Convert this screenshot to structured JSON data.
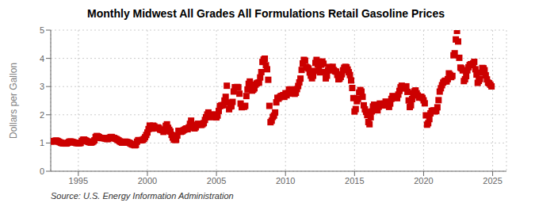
{
  "chart_data": {
    "type": "scatter",
    "title": "Monthly Midwest All Grades All Formulations Retail Gasoline Prices",
    "y_label": "Dollars per Gallon",
    "annotations": [
      "Source: U.S. Energy Information Administration"
    ],
    "color": "#cc0000",
    "marker": "square",
    "grid": true,
    "xlim": [
      1993.0,
      2026.0
    ],
    "xticks": [
      1995,
      2000,
      2005,
      2010,
      2015,
      2020,
      2025
    ],
    "ylim": [
      0,
      5
    ],
    "yticks": [
      0,
      1,
      2,
      3,
      4,
      5
    ],
    "x": [
      1993.0,
      1993.083,
      1993.167,
      1993.25,
      1993.333,
      1993.417,
      1993.5,
      1993.583,
      1993.667,
      1993.75,
      1993.833,
      1993.917,
      1994.0,
      1994.083,
      1994.167,
      1994.25,
      1994.333,
      1994.417,
      1994.5,
      1994.583,
      1994.667,
      1994.75,
      1994.833,
      1994.917,
      1995.0,
      1995.083,
      1995.167,
      1995.25,
      1995.333,
      1995.417,
      1995.5,
      1995.583,
      1995.667,
      1995.75,
      1995.833,
      1995.917,
      1996.0,
      1996.083,
      1996.167,
      1996.25,
      1996.333,
      1996.417,
      1996.5,
      1996.583,
      1996.667,
      1996.75,
      1996.833,
      1996.917,
      1997.0,
      1997.083,
      1997.167,
      1997.25,
      1997.333,
      1997.417,
      1997.5,
      1997.583,
      1997.667,
      1997.75,
      1997.833,
      1997.917,
      1998.0,
      1998.083,
      1998.167,
      1998.25,
      1998.333,
      1998.417,
      1998.5,
      1998.583,
      1998.667,
      1998.75,
      1998.833,
      1998.917,
      1999.0,
      1999.083,
      1999.167,
      1999.25,
      1999.333,
      1999.417,
      1999.5,
      1999.583,
      1999.667,
      1999.75,
      1999.833,
      1999.917,
      2000.0,
      2000.083,
      2000.167,
      2000.25,
      2000.333,
      2000.417,
      2000.5,
      2000.583,
      2000.667,
      2000.75,
      2000.833,
      2000.917,
      2001.0,
      2001.083,
      2001.167,
      2001.25,
      2001.333,
      2001.417,
      2001.5,
      2001.583,
      2001.667,
      2001.75,
      2001.833,
      2001.917,
      2002.0,
      2002.083,
      2002.167,
      2002.25,
      2002.333,
      2002.417,
      2002.5,
      2002.583,
      2002.667,
      2002.75,
      2002.833,
      2002.917,
      2003.0,
      2003.083,
      2003.167,
      2003.25,
      2003.333,
      2003.417,
      2003.5,
      2003.583,
      2003.667,
      2003.75,
      2003.833,
      2003.917,
      2004.0,
      2004.083,
      2004.167,
      2004.25,
      2004.333,
      2004.417,
      2004.5,
      2004.583,
      2004.667,
      2004.75,
      2004.833,
      2004.917,
      2005.0,
      2005.083,
      2005.167,
      2005.25,
      2005.333,
      2005.417,
      2005.5,
      2005.583,
      2005.667,
      2005.75,
      2005.833,
      2005.917,
      2006.0,
      2006.083,
      2006.167,
      2006.25,
      2006.333,
      2006.417,
      2006.5,
      2006.583,
      2006.667,
      2006.75,
      2006.833,
      2006.917,
      2007.0,
      2007.083,
      2007.167,
      2007.25,
      2007.333,
      2007.417,
      2007.5,
      2007.583,
      2007.667,
      2007.75,
      2007.833,
      2007.917,
      2008.0,
      2008.083,
      2008.167,
      2008.25,
      2008.333,
      2008.417,
      2008.5,
      2008.583,
      2008.667,
      2008.75,
      2008.833,
      2008.917,
      2009.0,
      2009.083,
      2009.167,
      2009.25,
      2009.333,
      2009.417,
      2009.5,
      2009.583,
      2009.667,
      2009.75,
      2009.833,
      2009.917,
      2010.0,
      2010.083,
      2010.167,
      2010.25,
      2010.333,
      2010.417,
      2010.5,
      2010.583,
      2010.667,
      2010.75,
      2010.833,
      2010.917,
      2011.0,
      2011.083,
      2011.167,
      2011.25,
      2011.333,
      2011.417,
      2011.5,
      2011.583,
      2011.667,
      2011.75,
      2011.833,
      2011.917,
      2012.0,
      2012.083,
      2012.167,
      2012.25,
      2012.333,
      2012.417,
      2012.5,
      2012.583,
      2012.667,
      2012.75,
      2012.833,
      2012.917,
      2013.0,
      2013.083,
      2013.167,
      2013.25,
      2013.333,
      2013.417,
      2013.5,
      2013.583,
      2013.667,
      2013.75,
      2013.833,
      2013.917,
      2014.0,
      2014.083,
      2014.167,
      2014.25,
      2014.333,
      2014.417,
      2014.5,
      2014.583,
      2014.667,
      2014.75,
      2014.833,
      2014.917,
      2015.0,
      2015.083,
      2015.167,
      2015.25,
      2015.333,
      2015.417,
      2015.5,
      2015.583,
      2015.667,
      2015.75,
      2015.833,
      2015.917,
      2016.0,
      2016.083,
      2016.167,
      2016.25,
      2016.333,
      2016.417,
      2016.5,
      2016.583,
      2016.667,
      2016.75,
      2016.833,
      2016.917,
      2017.0,
      2017.083,
      2017.167,
      2017.25,
      2017.333,
      2017.417,
      2017.5,
      2017.583,
      2017.667,
      2017.75,
      2017.833,
      2017.917,
      2018.0,
      2018.083,
      2018.167,
      2018.25,
      2018.333,
      2018.417,
      2018.5,
      2018.583,
      2018.667,
      2018.75,
      2018.833,
      2018.917,
      2019.0,
      2019.083,
      2019.167,
      2019.25,
      2019.333,
      2019.417,
      2019.5,
      2019.583,
      2019.667,
      2019.75,
      2019.833,
      2019.917,
      2020.0,
      2020.083,
      2020.167,
      2020.25,
      2020.333,
      2020.417,
      2020.5,
      2020.583,
      2020.667,
      2020.75,
      2020.833,
      2020.917,
      2021.0,
      2021.083,
      2021.167,
      2021.25,
      2021.333,
      2021.417,
      2021.5,
      2021.583,
      2021.667,
      2021.75,
      2021.833,
      2021.917,
      2022.0,
      2022.083,
      2022.167,
      2022.25,
      2022.333,
      2022.417,
      2022.5,
      2022.583,
      2022.667,
      2022.75,
      2022.833,
      2022.917,
      2023.0,
      2023.083,
      2023.167,
      2023.25,
      2023.333,
      2023.417,
      2023.5,
      2023.583,
      2023.667,
      2023.75,
      2023.833,
      2023.917,
      2024.0,
      2024.083,
      2024.167,
      2024.25,
      2024.333,
      2024.417,
      2024.5,
      2024.583,
      2024.667,
      2024.75,
      2024.833,
      2024.917
    ],
    "values": [
      1.061,
      1.058,
      1.057,
      1.06,
      1.081,
      1.086,
      1.07,
      1.046,
      1.027,
      1.008,
      0.993,
      0.99,
      0.988,
      0.981,
      0.986,
      1.012,
      1.044,
      1.055,
      1.047,
      1.037,
      1.022,
      1.012,
      1.001,
      0.995,
      0.995,
      0.992,
      1.003,
      1.07,
      1.116,
      1.122,
      1.098,
      1.076,
      1.052,
      1.038,
      1.023,
      1.013,
      1.03,
      1.054,
      1.095,
      1.213,
      1.247,
      1.237,
      1.207,
      1.184,
      1.176,
      1.176,
      1.176,
      1.163,
      1.155,
      1.138,
      1.145,
      1.183,
      1.211,
      1.212,
      1.186,
      1.18,
      1.155,
      1.14,
      1.115,
      1.091,
      1.057,
      1.034,
      1.015,
      1.011,
      1.041,
      1.048,
      1.038,
      1.026,
      1.011,
      0.99,
      0.963,
      0.946,
      0.936,
      0.919,
      0.931,
      1.046,
      1.101,
      1.098,
      1.094,
      1.1,
      1.109,
      1.147,
      1.204,
      1.284,
      1.372,
      1.494,
      1.617,
      1.523,
      1.511,
      1.616,
      1.59,
      1.524,
      1.529,
      1.554,
      1.535,
      1.476,
      1.47,
      1.453,
      1.394,
      1.43,
      1.608,
      1.662,
      1.538,
      1.467,
      1.406,
      1.288,
      1.193,
      1.121,
      1.108,
      1.115,
      1.265,
      1.43,
      1.427,
      1.395,
      1.408,
      1.442,
      1.467,
      1.494,
      1.517,
      1.487,
      1.556,
      1.679,
      1.793,
      1.638,
      1.543,
      1.518,
      1.558,
      1.643,
      1.682,
      1.669,
      1.647,
      1.641,
      1.67,
      1.706,
      1.817,
      1.912,
      2.01,
      2.082,
      1.978,
      1.926,
      1.916,
      2.002,
      2.012,
      1.946,
      1.908,
      1.972,
      2.139,
      2.304,
      2.327,
      2.339,
      2.342,
      2.505,
      2.636,
      3.029,
      2.432,
      2.197,
      2.293,
      2.307,
      2.457,
      2.824,
      2.977,
      2.974,
      2.985,
      2.974,
      2.748,
      2.397,
      2.268,
      2.292,
      2.282,
      2.317,
      2.665,
      2.897,
      3.098,
      3.179,
      3.028,
      2.856,
      2.893,
      2.939,
      3.068,
      3.111,
      3.136,
      3.143,
      3.324,
      3.512,
      3.872,
      3.954,
      3.988,
      3.756,
      3.614,
      3.24,
      2.316,
      1.737,
      1.792,
      1.923,
      1.973,
      2.082,
      2.44,
      2.602,
      2.569,
      2.624,
      2.665,
      2.67,
      2.698,
      2.634,
      2.764,
      2.69,
      2.763,
      2.893,
      2.899,
      2.896,
      2.758,
      2.757,
      2.743,
      2.78,
      2.911,
      3.019,
      3.148,
      3.283,
      3.59,
      3.819,
      3.946,
      3.918,
      3.697,
      3.671,
      3.64,
      3.499,
      3.387,
      3.293,
      3.383,
      3.554,
      3.839,
      3.945,
      3.782,
      3.686,
      3.505,
      3.776,
      3.888,
      3.81,
      3.515,
      3.29,
      3.384,
      3.576,
      3.695,
      3.581,
      3.623,
      3.7,
      3.584,
      3.543,
      3.528,
      3.412,
      3.258,
      3.278,
      3.34,
      3.435,
      3.578,
      3.666,
      3.698,
      3.684,
      3.603,
      3.508,
      3.408,
      3.217,
      2.949,
      2.591,
      2.116,
      2.202,
      2.481,
      2.561,
      2.788,
      2.877,
      2.822,
      2.636,
      2.336,
      2.194,
      2.102,
      1.987,
      1.741,
      1.665,
      1.912,
      2.119,
      2.295,
      2.358,
      2.258,
      2.19,
      2.159,
      2.283,
      2.398,
      2.381,
      2.358,
      2.33,
      2.393,
      2.468,
      2.399,
      2.37,
      2.278,
      2.397,
      2.563,
      2.664,
      2.617,
      2.615,
      2.619,
      2.588,
      2.716,
      2.847,
      2.973,
      3.031,
      2.983,
      2.938,
      2.937,
      3.008,
      2.812,
      2.509,
      2.274,
      2.335,
      2.556,
      2.77,
      2.831,
      2.863,
      2.76,
      2.685,
      2.606,
      2.626,
      2.641,
      2.595,
      2.513,
      2.406,
      1.98,
      1.649,
      1.703,
      1.847,
      2.05,
      2.134,
      2.15,
      2.157,
      2.119,
      2.137,
      2.265,
      2.519,
      2.822,
      2.94,
      3.049,
      3.14,
      3.186,
      3.209,
      3.181,
      3.261,
      3.468,
      3.416,
      3.337,
      3.378,
      4.108,
      4.18,
      4.669,
      4.974,
      4.597,
      4.019,
      3.672,
      3.644,
      3.573,
      3.195,
      3.258,
      3.372,
      3.577,
      3.686,
      3.762,
      3.793,
      3.761,
      3.819,
      3.876,
      3.613,
      3.424,
      3.131,
      3.203,
      3.266,
      3.492,
      3.659,
      3.648,
      3.579,
      3.397,
      3.253,
      3.14,
      3.115,
      3.065,
      3.006
    ]
  }
}
